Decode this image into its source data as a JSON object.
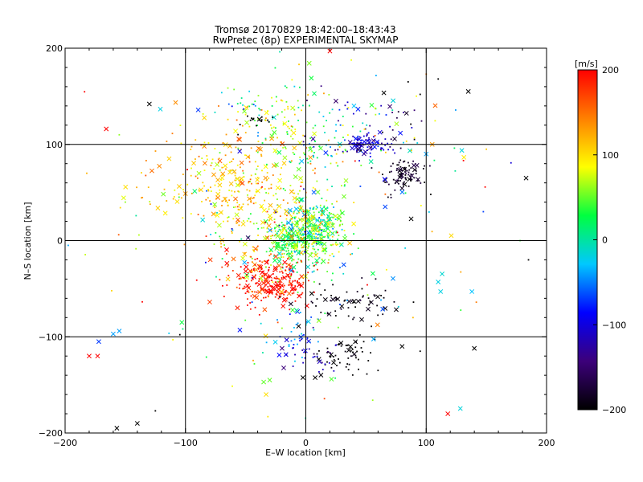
{
  "chart_data": {
    "type": "scatter",
    "title": "Tromsø 20170829 18:42:00–18:43:43",
    "subtitle": "RwPretec (8p) EXPERIMENTAL SKYMAP",
    "xlabel": "E–W location [km]",
    "ylabel": "N–S location [km]",
    "xlim": [
      -200,
      200
    ],
    "ylim": [
      -200,
      200
    ],
    "grid": true,
    "x_ticks": [
      "−200",
      "−100",
      "0",
      "100",
      "200"
    ],
    "y_ticks": [
      "−200",
      "−100",
      "0",
      "100",
      "200"
    ],
    "colorbar": {
      "label": "[m/s]",
      "range": [
        -200,
        200
      ],
      "ticks": [
        "−200",
        "−100",
        "0",
        "100",
        "200"
      ],
      "colors": [
        "#000000",
        "#3c007a",
        "#0000ff",
        "#00c8ff",
        "#00ff40",
        "#ffff00",
        "#ff8000",
        "#ff0000"
      ]
    },
    "clusters": [
      {
        "cx": 5,
        "cy": 10,
        "sx": 14,
        "sy": 14,
        "n": 420,
        "v": 30,
        "vs": 45
      },
      {
        "cx": -15,
        "cy": 0,
        "sx": 22,
        "sy": 22,
        "n": 160,
        "v": 70,
        "vs": 40
      },
      {
        "cx": -60,
        "cy": 60,
        "sx": 32,
        "sy": 28,
        "n": 300,
        "v": 110,
        "vs": 25
      },
      {
        "cx": -25,
        "cy": -45,
        "sx": 14,
        "sy": 11,
        "n": 200,
        "v": 195,
        "vs": 12
      },
      {
        "cx": -45,
        "cy": -35,
        "sx": 20,
        "sy": 18,
        "n": 60,
        "v": 165,
        "vs": 25
      },
      {
        "cx": 5,
        "cy": 110,
        "sx": 32,
        "sy": 30,
        "n": 140,
        "v": 30,
        "vs": 55
      },
      {
        "cx": 50,
        "cy": 100,
        "sx": 10,
        "sy": 6,
        "n": 80,
        "v": -110,
        "vs": 20
      },
      {
        "cx": 80,
        "cy": 70,
        "sx": 8,
        "sy": 9,
        "n": 90,
        "v": -185,
        "vs": 12
      },
      {
        "cx": 60,
        "cy": 120,
        "sx": 26,
        "sy": 20,
        "n": 50,
        "v": -130,
        "vs": 50
      },
      {
        "cx": 35,
        "cy": -65,
        "sx": 20,
        "sy": 10,
        "n": 70,
        "v": -195,
        "vs": 8
      },
      {
        "cx": 30,
        "cy": -120,
        "sx": 12,
        "sy": 10,
        "n": 60,
        "v": -200,
        "vs": 5
      },
      {
        "cx": 5,
        "cy": -120,
        "sx": 12,
        "sy": 7,
        "n": 30,
        "v": -115,
        "vs": 18
      },
      {
        "cx": -5,
        "cy": -95,
        "sx": 10,
        "sy": 12,
        "n": 35,
        "v": -60,
        "vs": 30
      },
      {
        "cx": -15,
        "cy": -5,
        "sx": 6,
        "sy": 8,
        "n": 50,
        "v": 25,
        "vs": 15
      },
      {
        "cx": -20,
        "cy": 125,
        "sx": 15,
        "sy": 15,
        "n": 40,
        "v": 90,
        "vs": 30
      },
      {
        "cx": -50,
        "cy": 140,
        "sx": 20,
        "sy": 10,
        "n": 25,
        "v": 0,
        "vs": 60
      },
      {
        "cx": -40,
        "cy": 125,
        "sx": 6,
        "sy": 3,
        "n": 15,
        "v": -200,
        "vs": 4
      },
      {
        "cx": 0,
        "cy": 0,
        "sx": 80,
        "sy": 80,
        "n": 180,
        "v": 40,
        "vs": 100
      }
    ],
    "extra_points": [
      {
        "x": 20,
        "y": 197,
        "v": 200,
        "m": "x"
      },
      {
        "x": -180,
        "y": -120,
        "v": 200,
        "m": "x"
      },
      {
        "x": -173,
        "y": -120,
        "v": 200,
        "m": "x"
      },
      {
        "x": -172,
        "y": -105,
        "v": -70,
        "m": "x"
      },
      {
        "x": -140,
        "y": -190,
        "v": -200,
        "m": "x"
      },
      {
        "x": -157,
        "y": -195,
        "v": -200,
        "m": "x"
      },
      {
        "x": -130,
        "y": 142,
        "v": -200,
        "m": "x"
      },
      {
        "x": -30,
        "y": -145,
        "v": 50,
        "m": "x"
      },
      {
        "x": -35,
        "y": -147,
        "v": 50,
        "m": "x"
      },
      {
        "x": -33,
        "y": -160,
        "v": 100,
        "m": "x"
      },
      {
        "x": 140,
        "y": -112,
        "v": -200,
        "m": "x"
      },
      {
        "x": 110,
        "y": -43,
        "v": -20,
        "m": "x"
      },
      {
        "x": 112,
        "y": -53,
        "v": -20,
        "m": "x"
      },
      {
        "x": 138,
        "y": -53,
        "v": -30,
        "m": "x"
      },
      {
        "x": 118,
        "y": -180,
        "v": 200,
        "m": "x"
      },
      {
        "x": 183,
        "y": 65,
        "v": -200,
        "m": "x"
      },
      {
        "x": 105,
        "y": 100,
        "v": 130,
        "m": "x"
      },
      {
        "x": 100,
        "y": 90,
        "v": -40,
        "m": "x"
      },
      {
        "x": -103,
        "y": -85,
        "v": 30,
        "m": "x"
      },
      {
        "x": -160,
        "y": -97,
        "v": -40,
        "m": "x"
      },
      {
        "x": -155,
        "y": -94,
        "v": -40,
        "m": "x"
      },
      {
        "x": -125,
        "y": -177,
        "v": -200,
        "m": "+"
      },
      {
        "x": -182,
        "y": 70,
        "v": 120,
        "m": "+"
      },
      {
        "x": 185,
        "y": -20,
        "v": -200,
        "m": "+"
      },
      {
        "x": 178,
        "y": 0,
        "v": 40,
        "m": "+"
      },
      {
        "x": 135,
        "y": 155,
        "v": -200,
        "m": "x"
      },
      {
        "x": -55,
        "y": 105,
        "v": 150,
        "m": "x"
      },
      {
        "x": -155,
        "y": 110,
        "v": 60,
        "m": "+"
      },
      {
        "x": -150,
        "y": 40,
        "v": 60,
        "m": "+"
      },
      {
        "x": 150,
        "y": 95,
        "v": 110,
        "m": "+"
      },
      {
        "x": 40,
        "y": 140,
        "v": -30,
        "m": "x"
      },
      {
        "x": 25,
        "y": 145,
        "v": -150,
        "m": "x"
      },
      {
        "x": 95,
        "y": 152,
        "v": -200,
        "m": "+"
      },
      {
        "x": 85,
        "y": 165,
        "v": -200,
        "m": "+"
      },
      {
        "x": 110,
        "y": 168,
        "v": -200,
        "m": "+"
      },
      {
        "x": 80,
        "y": -110,
        "v": -200,
        "m": "x"
      },
      {
        "x": 95,
        "y": -115,
        "v": -200,
        "m": "+"
      },
      {
        "x": 60,
        "y": -135,
        "v": -200,
        "m": "+"
      }
    ]
  }
}
